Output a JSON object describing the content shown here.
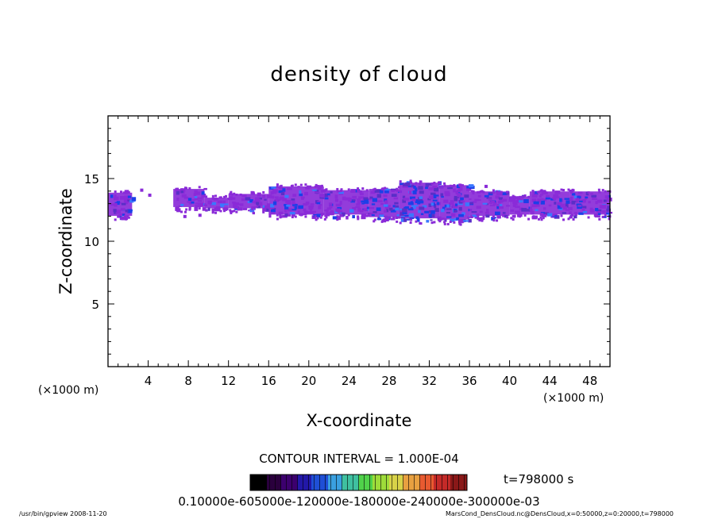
{
  "chart_data": {
    "type": "heatmap",
    "title": "density of cloud",
    "xlabel": "X-coordinate",
    "ylabel": "Z-coordinate",
    "x_unit_left": "(×1000 m)",
    "x_unit_right": "(×1000 m)",
    "xlim": [
      0,
      50
    ],
    "ylim": [
      0,
      20
    ],
    "xticks": [
      "4",
      "8",
      "12",
      "16",
      "20",
      "24",
      "28",
      "32",
      "36",
      "40",
      "44",
      "48"
    ],
    "yticks": [
      "5",
      "10",
      "15"
    ],
    "contour_interval": "CONTOUR INTERVAL = 1.000E-04",
    "time_label": "t=798000 s",
    "colorbar_labels": "0.10000e-605000e-120000e-180000e-240000e-300000e-03",
    "colorbar_colors": [
      "#000000",
      "#2a003d",
      "#3c006e",
      "#2218a8",
      "#1f4fd6",
      "#3aa0e0",
      "#3fc0a0",
      "#50d24a",
      "#9edc3a",
      "#d8d248",
      "#e8a040",
      "#e85a30",
      "#c42a28",
      "#8a1818"
    ],
    "cloud_bands": [
      {
        "x0": 0,
        "x1": 2.4,
        "z0": 11.9,
        "z1": 14.0,
        "intensity": 0.6
      },
      {
        "x0": 6.5,
        "x1": 9.6,
        "z0": 12.6,
        "z1": 14.3,
        "intensity": 0.15
      },
      {
        "x0": 9.6,
        "x1": 12.0,
        "z0": 12.5,
        "z1": 13.6,
        "intensity": 0.2
      },
      {
        "x0": 12.0,
        "x1": 16.0,
        "z0": 12.5,
        "z1": 13.9,
        "intensity": 0.3
      },
      {
        "x0": 16.0,
        "x1": 21.5,
        "z0": 12.0,
        "z1": 14.5,
        "intensity": 0.3
      },
      {
        "x0": 21.5,
        "x1": 26.0,
        "z0": 12.0,
        "z1": 14.2,
        "intensity": 0.35
      },
      {
        "x0": 26.0,
        "x1": 29.0,
        "z0": 11.8,
        "z1": 14.3,
        "intensity": 0.55
      },
      {
        "x0": 29.0,
        "x1": 33.0,
        "z0": 11.7,
        "z1": 14.8,
        "intensity": 0.95
      },
      {
        "x0": 33.0,
        "x1": 36.0,
        "z0": 11.6,
        "z1": 14.6,
        "intensity": 0.8
      },
      {
        "x0": 36.0,
        "x1": 40.0,
        "z0": 11.9,
        "z1": 14.1,
        "intensity": 0.5
      },
      {
        "x0": 40.0,
        "x1": 42.0,
        "z0": 12.0,
        "z1": 13.7,
        "intensity": 0.3
      },
      {
        "x0": 42.0,
        "x1": 46.0,
        "z0": 12.0,
        "z1": 14.1,
        "intensity": 0.4
      },
      {
        "x0": 46.0,
        "x1": 50.0,
        "z0": 12.0,
        "z1": 14.1,
        "intensity": 0.6
      }
    ],
    "colors": {
      "low": "#8a2bd8",
      "mid": "#5a2ec8",
      "high": "#1c3fe8",
      "peak": "#3a78ff"
    }
  },
  "footer": {
    "left": "/usr/bin/gpview   2008-11-20",
    "right": "MarsCond_DensCloud.nc@DensCloud,x=0:50000,z=0:20000,t=798000"
  }
}
